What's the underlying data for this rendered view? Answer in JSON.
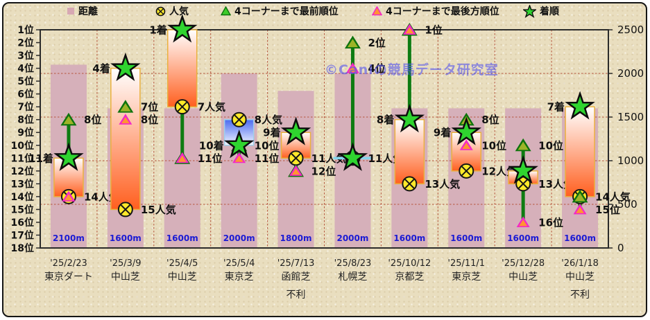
{
  "watermark": "©Caniの競馬データ研究室",
  "colors": {
    "panel": "#e9debf",
    "distance_bar": "#d6b0ba",
    "grid": "#b5543c",
    "frame": "#2b2b2b",
    "candle_up_top": "#ffffff",
    "candle_up_bottom": "#ff5f1f",
    "candle_up_border": "#e9b13e",
    "candle_down_top": "#4a6af0",
    "candle_down_bottom": "#f4f8ff",
    "candle_down_border": "#9fd0ea",
    "candle_flat": "#85d6ee",
    "run_line": "#0e7c12",
    "star_fill": "#2fd42f",
    "star_stroke": "#0d0d0d",
    "circle_fill": "#ffe92a",
    "circle_stroke": "#161616",
    "front_tri_fill": "#9cb428",
    "front_tri_stroke": "#0d730d",
    "back_tri_fill": "#ff9433",
    "back_tri_stroke": "#f327c8",
    "distance_text": "#1b1bd4",
    "axis_text": "#111111",
    "label_text": "#101010",
    "watermark_color": "#5656ee"
  },
  "chart_data": {
    "type": "bar",
    "title": "",
    "legend": [
      {
        "key": "distance",
        "label": "距離"
      },
      {
        "key": "popularity",
        "label": "人気"
      },
      {
        "key": "corner_front",
        "label": "4コーナーまで最前順位"
      },
      {
        "key": "corner_back",
        "label": "4コーナーまで最後方順位"
      },
      {
        "key": "finish",
        "label": "着順"
      }
    ],
    "y_left": {
      "unit": "位",
      "min": 1,
      "max": 18
    },
    "y_right": {
      "ticks": [
        0,
        500,
        1000,
        1500,
        2000,
        2500
      ],
      "max": 2500
    },
    "races": [
      {
        "date": "'25/2/23",
        "track": "東京ダート",
        "note": "",
        "distance_m": 2100,
        "distance_label": "2100m",
        "popularity": 14,
        "finish": 11,
        "corner_front": 8,
        "corner_back": 14,
        "candle": {
          "from": 11,
          "to": 14,
          "style": "up"
        },
        "line": {
          "from": 8,
          "to": 11
        },
        "labels": [
          {
            "rank": 8,
            "text": "8位",
            "side": "right"
          },
          {
            "rank": 11,
            "text": "11着",
            "side": "left"
          },
          {
            "rank": 14,
            "text": "14人気",
            "side": "right"
          }
        ]
      },
      {
        "date": "'25/3/9",
        "track": "中山芝",
        "note": "",
        "distance_m": 1600,
        "distance_label": "1600m",
        "popularity": 15,
        "finish": 4,
        "corner_front": 7,
        "corner_back": 8,
        "candle": {
          "from": 4,
          "to": 15,
          "style": "up"
        },
        "line": {
          "from": 7,
          "to": 8
        },
        "labels": [
          {
            "rank": 4,
            "text": "4着",
            "side": "left"
          },
          {
            "rank": 7,
            "text": "7位",
            "side": "right"
          },
          {
            "rank": 8,
            "text": "8位",
            "side": "right"
          },
          {
            "rank": 15,
            "text": "15人気",
            "side": "right"
          }
        ]
      },
      {
        "date": "'25/4/5",
        "track": "中山芝",
        "note": "",
        "distance_m": 1600,
        "distance_label": "1600m",
        "popularity": 7,
        "finish": 1,
        "corner_front": 11,
        "corner_back": 11,
        "candle": {
          "from": 1,
          "to": 7,
          "style": "up"
        },
        "line": {
          "from": 7,
          "to": 11
        },
        "labels": [
          {
            "rank": 1,
            "text": "1着",
            "side": "left"
          },
          {
            "rank": 7,
            "text": "7人気",
            "side": "right"
          },
          {
            "rank": 11,
            "text": "11位",
            "side": "right"
          }
        ]
      },
      {
        "date": "'25/5/4",
        "track": "東京芝",
        "note": "",
        "distance_m": 2000,
        "distance_label": "2000m",
        "popularity": 8,
        "finish": 10,
        "corner_front": 10,
        "corner_back": 11,
        "candle": {
          "from": 8,
          "to": 10,
          "style": "down"
        },
        "line": {
          "from": 10,
          "to": 11
        },
        "labels": [
          {
            "rank": 8,
            "text": "8人気",
            "side": "right"
          },
          {
            "rank": 10,
            "text": "10着",
            "side": "left"
          },
          {
            "rank": 10,
            "text": "10位",
            "side": "right"
          },
          {
            "rank": 11,
            "text": "11位",
            "side": "right"
          }
        ]
      },
      {
        "date": "'25/7/13",
        "track": "函館芝",
        "note": "不利",
        "distance_m": 1800,
        "distance_label": "1800m",
        "popularity": 11,
        "finish": 9,
        "corner_front": 12,
        "corner_back": 12,
        "candle": {
          "from": 9,
          "to": 11,
          "style": "up"
        },
        "line": {
          "from": 11,
          "to": 12
        },
        "labels": [
          {
            "rank": 9,
            "text": "9着",
            "side": "left"
          },
          {
            "rank": 11,
            "text": "11人気",
            "side": "right"
          },
          {
            "rank": 12,
            "text": "12位",
            "side": "right"
          }
        ]
      },
      {
        "date": "'25/8/23",
        "track": "札幌芝",
        "note": "",
        "distance_m": 2000,
        "distance_label": "2000m",
        "popularity": 11,
        "finish": 11,
        "corner_front": 2,
        "corner_back": 4,
        "candle": {
          "from": 11,
          "to": 11,
          "style": "flat"
        },
        "line": {
          "from": 2,
          "to": 11
        },
        "labels": [
          {
            "rank": 2,
            "text": "2位",
            "side": "right"
          },
          {
            "rank": 4,
            "text": "4位",
            "side": "right"
          },
          {
            "rank": 11,
            "text": "11人気",
            "side": "right"
          }
        ]
      },
      {
        "date": "'25/10/12",
        "track": "京都芝",
        "note": "",
        "distance_m": 1600,
        "distance_label": "1600m",
        "popularity": 13,
        "finish": 8,
        "corner_front": 1,
        "corner_back": 1,
        "candle": {
          "from": 8,
          "to": 13,
          "style": "up"
        },
        "line": {
          "from": 1,
          "to": 8
        },
        "labels": [
          {
            "rank": 1,
            "text": "1位",
            "side": "right"
          },
          {
            "rank": 8,
            "text": "8着",
            "side": "left"
          },
          {
            "rank": 13,
            "text": "13人気",
            "side": "right"
          }
        ]
      },
      {
        "date": "'25/11/1",
        "track": "東京芝",
        "note": "",
        "distance_m": 1600,
        "distance_label": "1600m",
        "popularity": 12,
        "finish": 9,
        "corner_front": 8,
        "corner_back": 10,
        "candle": {
          "from": 9,
          "to": 12,
          "style": "up"
        },
        "line": {
          "from": 8,
          "to": 10
        },
        "labels": [
          {
            "rank": 8,
            "text": "8位",
            "side": "right"
          },
          {
            "rank": 9,
            "text": "9着",
            "side": "left"
          },
          {
            "rank": 10,
            "text": "10位",
            "side": "right"
          },
          {
            "rank": 12,
            "text": "12人気",
            "side": "right"
          }
        ]
      },
      {
        "date": "'25/12/28",
        "track": "中山芝",
        "note": "",
        "distance_m": 1600,
        "distance_label": "1600m",
        "popularity": 13,
        "finish": 12,
        "corner_front": 10,
        "corner_back": 16,
        "candle": {
          "from": 12,
          "to": 13,
          "style": "up"
        },
        "line": {
          "from": 10,
          "to": 16
        },
        "labels": [
          {
            "rank": 10,
            "text": "10位",
            "side": "right"
          },
          {
            "rank": 13,
            "text": "13人気",
            "side": "right"
          },
          {
            "rank": 16,
            "text": "16位",
            "side": "right"
          }
        ]
      },
      {
        "date": "'26/1/18",
        "track": "中山芝",
        "note": "不利",
        "distance_m": 1600,
        "distance_label": "1600m",
        "popularity": 14,
        "finish": 7,
        "corner_front": 14,
        "corner_back": 15,
        "candle": {
          "from": 7,
          "to": 14,
          "style": "up"
        },
        "line": {
          "from": 14,
          "to": 15
        },
        "labels": [
          {
            "rank": 7,
            "text": "7着",
            "side": "left"
          },
          {
            "rank": 14,
            "text": "14人気",
            "side": "right"
          },
          {
            "rank": 15,
            "text": "15位",
            "side": "right"
          }
        ]
      }
    ]
  }
}
